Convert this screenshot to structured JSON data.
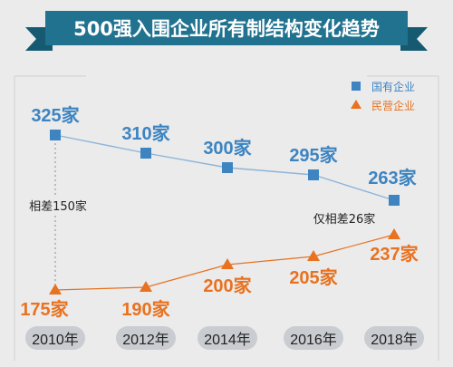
{
  "title": "500强入围企业所有制结构变化趋势",
  "colors": {
    "background": "#ebebec",
    "banner": "#20728f",
    "banner_dark": "#165a72",
    "series_state": "#3d84c1",
    "series_private": "#e8721f",
    "line_state": "#8db4d8",
    "line_private": "#e8721f",
    "year_pill": "#c9ccd0"
  },
  "chart_data": {
    "type": "line",
    "categories": [
      "2010年",
      "2012年",
      "2014年",
      "2016年",
      "2018年"
    ],
    "series": [
      {
        "name": "国有企业",
        "marker": "square",
        "values": [
          325,
          310,
          300,
          295,
          263
        ],
        "labels": [
          "325家",
          "310家",
          "300家",
          "295家",
          "263家"
        ]
      },
      {
        "name": "民营企业",
        "marker": "triangle",
        "values": [
          175,
          190,
          200,
          205,
          237
        ],
        "labels": [
          "175家",
          "190家",
          "200家",
          "205家",
          "237家"
        ]
      }
    ],
    "annotations": [
      {
        "text": "相差150家",
        "category": "2010年"
      },
      {
        "text": "仅相差26家",
        "category": "2018年"
      }
    ],
    "legend_position": "top-right",
    "grid": false
  }
}
